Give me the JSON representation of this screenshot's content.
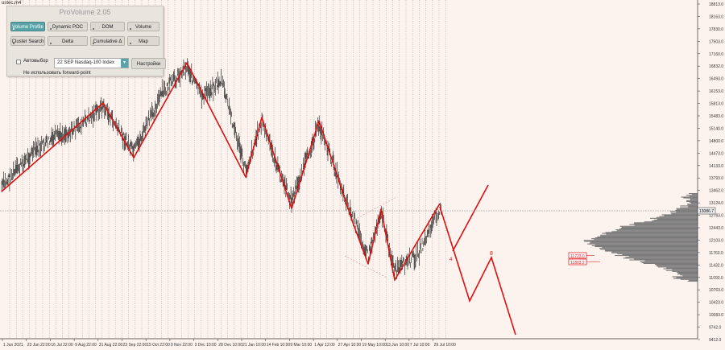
{
  "chart": {
    "symbol_tab": "ustec,m4",
    "current_price": "13086.7",
    "box_label_1": "11723.0",
    "box_label_2": "11803.2",
    "forecast_marker": "8"
  },
  "panel": {
    "title": "ProVolume 2.05",
    "buttons": {
      "volume_profile": "Volume Profile",
      "dynamic_poc": "Dynamic POC",
      "dom": "DOM",
      "volume": "Volume",
      "cluster_search": "Cluster Search",
      "delta": "Delta",
      "cumulative_delta": "Cumulative Δ",
      "map": "Map"
    },
    "auto_select_label": "Автовыбор",
    "symbol_value": "22 SEP Nasdaq-100 Index",
    "settings_label": "Настройки",
    "forward_point_label": "Не использовать forward-point"
  },
  "price_axis": [
    "18813.0",
    "18163.0",
    "17830.0",
    "17503.0",
    "17160.0",
    "16832.0",
    "16493.0",
    "16153.0",
    "15813.0",
    "15483.0",
    "15140.0",
    "14800.0",
    "14473.0",
    "14133.0",
    "13793.0",
    "13462.0",
    "13124.0",
    "12783.0",
    "12443.0",
    "12103.0",
    "11763.0",
    "11432.0",
    "11093.0",
    "10763.0",
    "10423.0",
    "10083.0",
    "9742.0",
    "9412.0"
  ],
  "time_axis": [
    "1 Jun 2021",
    "23 Jun 22:00",
    "16 Jul 22:00",
    "9 Aug 22:00",
    "31 Aug 22:00",
    "23 Sep 22:00",
    "15 Oct 22:00",
    "9 Nov 22:00",
    "3 Dec 10:00",
    "28 Dec 10:00",
    "21 Jan 10:00",
    "14 Feb 10:00",
    "9 Mar 10:00",
    "1 Apr 12:00",
    "27 Apr 10:00",
    "19 May 10:00",
    "13 Jun 10:00",
    "7 Jul 10:00",
    "29 Jul 10:00"
  ],
  "colors": {
    "background": "#fdf3ee",
    "zigzag": "#e01010",
    "candles": "#000000",
    "grid": "#555555",
    "accent": "#5aa3a8"
  }
}
